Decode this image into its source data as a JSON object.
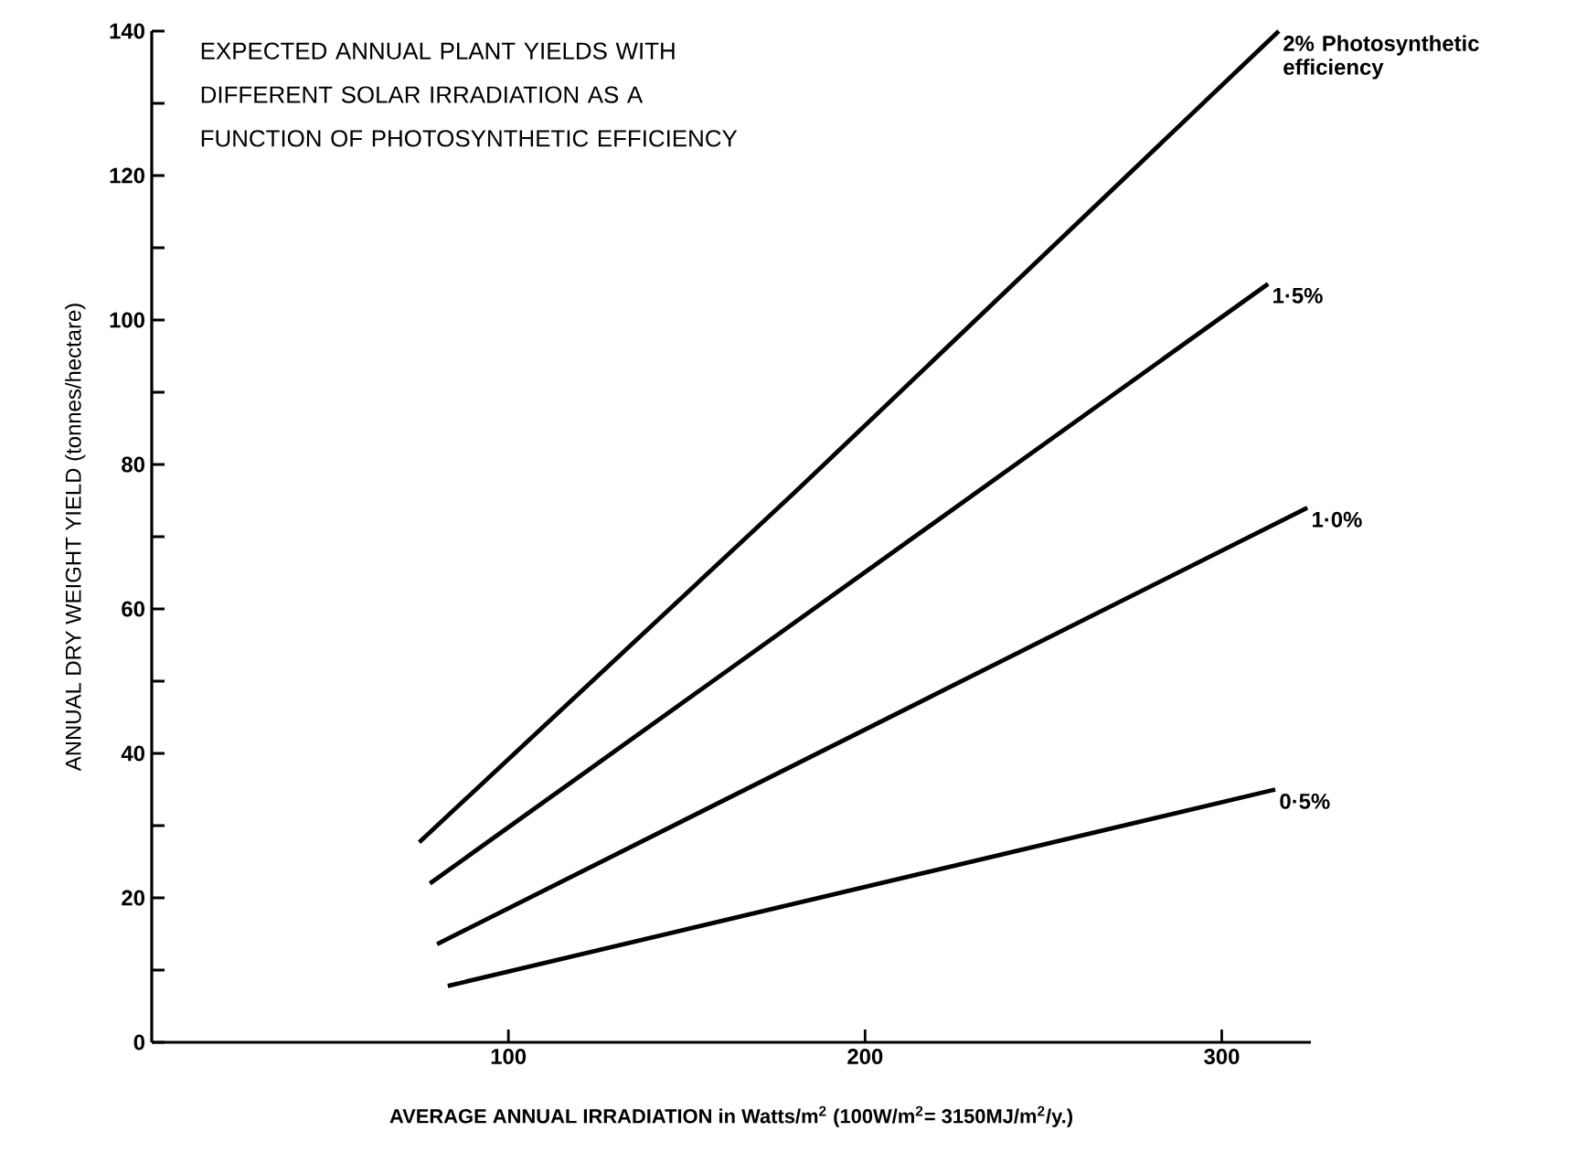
{
  "chart_data": {
    "type": "line",
    "title": "EXPECTED ANNUAL PLANT YIELDS WITH DIFFERENT SOLAR IRRADIATION AS A FUNCTION OF PHOTOSYNTHETIC EFFICIENCY",
    "xlabel": "AVERAGE ANNUAL IRRADIATION in Watts/m$^{2}$ (100W/m$^{2}$= 3150MJ/m$^{2}$/y.)",
    "ylabel": "ANNUAL DRY WEIGHT YIELD (tonnes/hectare)",
    "xlim": [
      0,
      325
    ],
    "ylim": [
      0,
      140
    ],
    "xticks": [
      100,
      200,
      300
    ],
    "yticks": [
      0,
      {
        "value": 10,
        "label": null
      },
      20,
      {
        "value": 30,
        "label": null
      },
      40,
      {
        "value": 50,
        "label": null
      },
      60,
      {
        "value": 70,
        "label": null
      },
      80,
      {
        "value": 90,
        "label": null
      },
      100,
      {
        "value": 110,
        "label": null
      },
      120,
      {
        "value": 130,
        "label": null
      },
      140
    ],
    "series": [
      {
        "name": "2% Photosynthetic efficiency",
        "color": "#000000",
        "x": [
          75,
          180,
          316
        ],
        "values": [
          27.7,
          76,
          140
        ]
      },
      {
        "name": "1·5%",
        "color": "#000000",
        "x": [
          78,
          313
        ],
        "values": [
          22,
          105
        ]
      },
      {
        "name": "1·0%",
        "color": "#000000",
        "x": [
          80,
          324
        ],
        "values": [
          13.6,
          74
        ]
      },
      {
        "name": "0·5%",
        "color": "#000000",
        "x": [
          83,
          315
        ],
        "values": [
          7.8,
          35
        ]
      }
    ]
  }
}
